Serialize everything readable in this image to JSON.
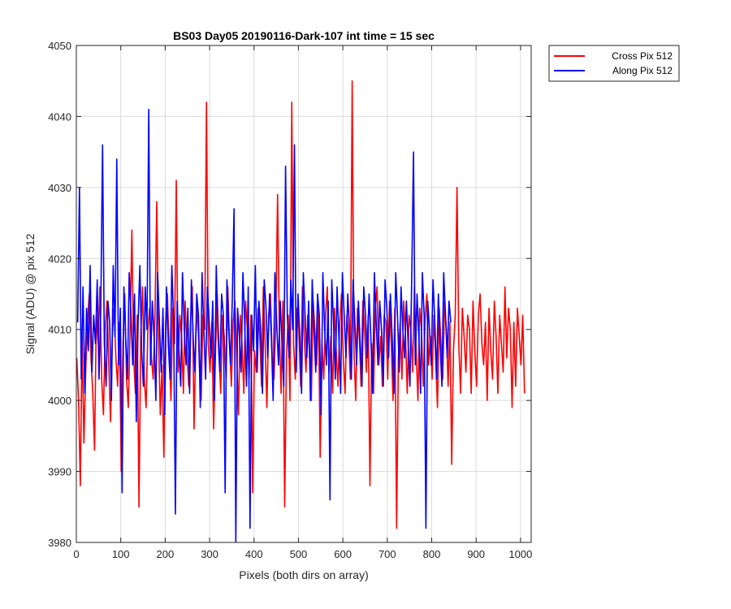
{
  "chart_data": {
    "type": "line",
    "title": "BS03 Day05 20190116-Dark-107 int time = 15 sec",
    "xlabel": "Pixels (both dirs on array)",
    "ylabel": "Signal (ADU) @ pix 512",
    "xlim": [
      0,
      1024
    ],
    "ylim": [
      3980,
      4050
    ],
    "xticks": [
      0,
      100,
      200,
      300,
      400,
      500,
      600,
      700,
      800,
      900,
      1000
    ],
    "yticks": [
      3980,
      3990,
      4000,
      4010,
      4020,
      4030,
      4040,
      4050
    ],
    "grid": true,
    "legend_position": "outside top-right",
    "series": [
      {
        "name": "Cross Pix 512",
        "color": "#ff0000",
        "x_start": 1,
        "x_step": 4,
        "values": [
          4006,
          4000,
          3988,
          4009,
          3994,
          4004,
          4011,
          4015,
          4006,
          4001,
          3993,
          4012,
          4008,
          4016,
          4003,
          3998,
          4010,
          4014,
          4005,
          3997,
          4009,
          4013,
          4006,
          4002,
          4011,
          3990,
          4008,
          4015,
          4003,
          3999,
          4010,
          4024,
          4006,
          4001,
          4012,
          3985,
          4009,
          4016,
          4003,
          3999,
          4010,
          4013,
          4006,
          4003,
          4012,
          4028,
          4009,
          3998,
          4005,
          3992,
          4011,
          4015,
          4007,
          4000,
          4013,
          4008,
          4031,
          4004,
          4012,
          4009,
          4001,
          4014,
          4007,
          4002,
          4011,
          4016,
          3996,
          4009,
          4013,
          4005,
          4000,
          4012,
          4010,
          4042,
          4008,
          4004,
          4011,
          3996,
          4006,
          4015,
          4007,
          4001,
          4012,
          4009,
          4003,
          4016,
          4008,
          4002,
          4011,
          4014,
          4006,
          3998,
          4012,
          4008,
          4001,
          4014,
          4010,
          4003,
          4012,
          3987,
          4007,
          4004,
          4013,
          4009,
          4002,
          4016,
          4008,
          3999,
          4012,
          4015,
          4006,
          4003,
          4011,
          4029,
          4010,
          4001,
          4014,
          3985,
          4006,
          4012,
          4000,
          4042,
          4008,
          4003,
          4013,
          4010,
          4002,
          4016,
          4009,
          4004,
          4012,
          4006,
          4000,
          4014,
          4010,
          4005,
          4013,
          3992,
          4008,
          4003,
          4012,
          4016,
          4004,
          4009,
          4001,
          4013,
          4007,
          4002,
          4011,
          4015,
          4006,
          4001,
          4012,
          4009,
          4003,
          4045,
          4007,
          4000,
          4013,
          4009,
          4002,
          4014,
          4010,
          4004,
          4012,
          3988,
          4008,
          4001,
          4013,
          4016,
          4005,
          4009,
          4002,
          4012,
          4011,
          4003,
          4014,
          4008,
          4000,
          4013,
          3982,
          4006,
          4011,
          4003,
          4014,
          4009,
          4001,
          4012,
          4010,
          4004,
          4016,
          4007,
          4000,
          4013,
          4010,
          4002,
          4011,
          4015,
          4005,
          4009,
          4003,
          4012,
          4006,
          3999,
          4013,
          4008,
          4003,
          4014,
          4010,
          4002,
          4011,
          3991,
          4007,
          4012,
          4030,
          4008,
          4001,
          4013,
          4009,
          4004,
          4012,
          4010,
          4001,
          4014,
          4007,
          4002,
          4012,
          4015,
          4008,
          4005,
          4011,
          4000,
          4013,
          4007,
          4003,
          4014,
          4009,
          4001,
          4012,
          4008,
          4004,
          4016,
          4006,
          4013,
          4010,
          3999,
          4011,
          4002,
          4013,
          4009,
          4005,
          4012,
          4001
        ]
      },
      {
        "name": "Along Pix 512",
        "color": "#0000ff",
        "x_start": 3,
        "x_step": 4,
        "values": [
          4011,
          4030,
          4003,
          4016,
          4001,
          4013,
          4007,
          4019,
          4004,
          4012,
          4008,
          4017,
          4003,
          4013,
          4036,
          4008,
          4002,
          4014,
          4011,
          4000,
          4019,
          4009,
          4034,
          4005,
          4013,
          3987,
          4016,
          4009,
          4003,
          4018,
          4012,
          4005,
          4015,
          3997,
          4011,
          4019,
          4007,
          4002,
          4016,
          4010,
          4041,
          4005,
          4014,
          4009,
          4000,
          4018,
          4011,
          4004,
          4013,
          3998,
          4016,
          4008,
          4003,
          4019,
          4011,
          3984,
          4014,
          4007,
          4002,
          4018,
          4010,
          4005,
          4013,
          4001,
          4017,
          4009,
          4004,
          4015,
          4012,
          3999,
          4018,
          4010,
          4003,
          4016,
          4011,
          4006,
          4014,
          4000,
          4019,
          4009,
          4004,
          4015,
          4012,
          3987,
          4017,
          4010,
          4005,
          4014,
          4027,
          3980,
          4013,
          4009,
          4004,
          4018,
          4011,
          4002,
          4016,
          3982,
          4012,
          4007,
          4019,
          4004,
          4014,
          4010,
          4001,
          4017,
          4013,
          4006,
          4015,
          4009,
          4000,
          4018,
          4011,
          4005,
          4014,
          4008,
          4002,
          4033,
          4012,
          4006,
          4017,
          4010,
          4036,
          4004,
          4015,
          4009,
          4001,
          4018,
          4012,
          4006,
          4014,
          4000,
          4017,
          4010,
          4004,
          4015,
          4012,
          3998,
          4018,
          4010,
          4005,
          4014,
          3986,
          4017,
          4011,
          4003,
          4016,
          4009,
          4001,
          4018,
          4012,
          4006,
          4015,
          4010,
          4003,
          4017,
          4011,
          4005,
          4014,
          4008,
          4002,
          4016,
          4012,
          4006,
          4015,
          4009,
          4001,
          4018,
          4011,
          4005,
          4014,
          4010,
          4002,
          4017,
          4013,
          4006,
          4015,
          4009,
          4001,
          4018,
          4012,
          4004,
          4016,
          4010,
          4006,
          4014,
          4008,
          4002,
          4017,
          4035,
          4005,
          4015,
          4009,
          4001,
          4018,
          4012,
          3982,
          4014,
          4010,
          4005,
          4017,
          4011,
          4003,
          4015,
          4008,
          4002,
          4018,
          4012,
          4006,
          4014,
          4011
        ]
      }
    ]
  }
}
